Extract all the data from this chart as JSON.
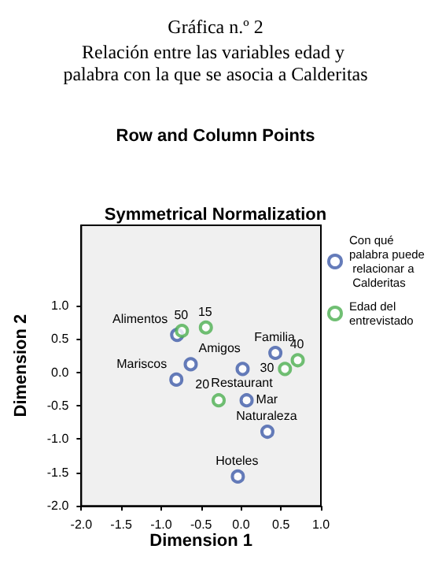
{
  "chart_data": {
    "type": "scatter",
    "title": "Gráfica n.º 2",
    "subtitle": "Relación entre las variables edad y palabra con la que se asocia a Calderitas",
    "xlabel": "Dimension 1",
    "ylabel": "Dimension 2",
    "annotations": [
      "Row and Column Points",
      "Symmetrical Normalization",
      {
        "text": "Alimentos",
        "x": -0.8,
        "y": 0.56
      },
      {
        "text": "Amigos",
        "x": -0.63,
        "y": 0.12
      },
      {
        "text": "Mariscos",
        "x": -0.81,
        "y": -0.11
      },
      {
        "text": "Familia",
        "x": 0.43,
        "y": 0.29
      },
      {
        "text": "Restaurant",
        "x": 0.02,
        "y": 0.05
      },
      {
        "text": "Mar",
        "x": 0.07,
        "y": -0.42
      },
      {
        "text": "Naturaleza",
        "x": 0.33,
        "y": -0.89
      },
      {
        "text": "Hoteles",
        "x": -0.04,
        "y": -1.56
      },
      {
        "text": "50",
        "x": -0.74,
        "y": 0.62
      },
      {
        "text": "15",
        "x": -0.44,
        "y": 0.67
      },
      {
        "text": "30",
        "x": 0.55,
        "y": 0.05
      },
      {
        "text": "40",
        "x": 0.71,
        "y": 0.18
      },
      {
        "text": "20",
        "x": -0.28,
        "y": -0.42
      }
    ],
    "series": [
      {
        "name": "Con qué palabra puede relacionar a Calderitas",
        "color": "#3f5ba9",
        "x": [
          -0.8,
          -0.63,
          -0.81,
          0.43,
          0.02,
          0.07,
          0.33,
          -0.04
        ],
        "values": [
          0.56,
          0.12,
          -0.11,
          0.29,
          0.05,
          -0.42,
          -0.89,
          -1.56
        ]
      },
      {
        "name": "Edad del entrevistado",
        "color": "#4caf50",
        "x": [
          -0.74,
          -0.44,
          0.55,
          0.71,
          -0.28
        ],
        "values": [
          0.62,
          0.67,
          0.05,
          0.18,
          -0.42
        ]
      }
    ],
    "xlim": [
      -2,
      1
    ],
    "xticks": [
      {
        "value": -2,
        "label": "-2.0"
      },
      -1.5,
      {
        "value": -1,
        "label": "-1.0"
      },
      -0.5,
      {
        "value": 0,
        "label": "0.0"
      },
      0.5,
      {
        "value": 1,
        "label": "1.0"
      }
    ],
    "ylim": [
      -2,
      2.2
    ],
    "yticks": [
      {
        "value": -2,
        "label": "-2.0"
      },
      -1.5,
      {
        "value": -1,
        "label": "-1.0"
      },
      -0.5,
      {
        "value": 0,
        "label": "0.0"
      },
      0.5,
      {
        "value": 1,
        "label": "1.0"
      }
    ],
    "marker": "circle",
    "legend": "right",
    "grid": false
  }
}
